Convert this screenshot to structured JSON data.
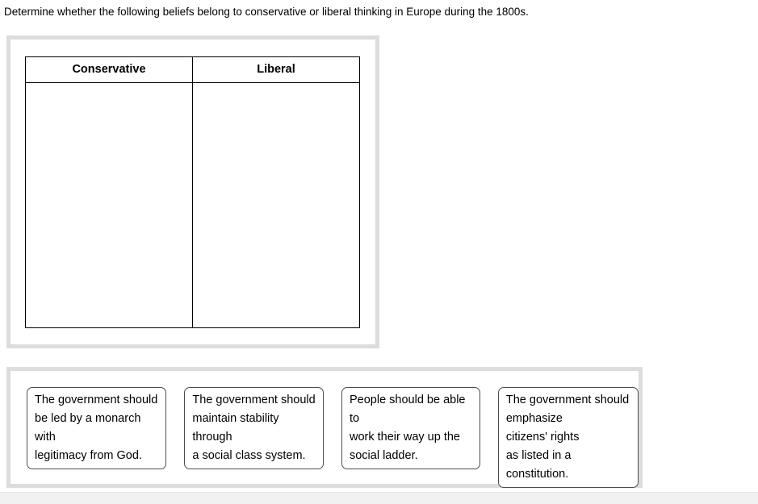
{
  "instruction": "Determine whether the following beliefs belong to conservative or liberal thinking in Europe during the 1800s.",
  "table": {
    "columns": [
      {
        "label": "Conservative"
      },
      {
        "label": "Liberal"
      }
    ]
  },
  "tray": {
    "cards": [
      {
        "text": "The government should\nbe led by a monarch with\nlegitimacy from God."
      },
      {
        "text": "The government should\nmaintain stability through\na social class system."
      },
      {
        "text": "People should be able to\nwork their way up the\nsocial ladder."
      },
      {
        "text": "The government should\nemphasize\ncitizens' rights\nas listed in a constitution."
      }
    ]
  }
}
